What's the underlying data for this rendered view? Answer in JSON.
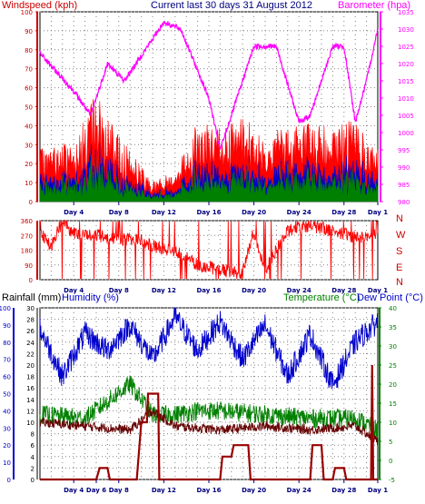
{
  "header": {
    "left_title": "Windspeed (kph)",
    "center_title": "Current last 30 days 31 August 2012",
    "right_title": "Barometer (hpa)"
  },
  "lower_header": {
    "rain_label": "Rainfall (mm)",
    "humidity_label": "Humidity (%)",
    "temperature_label": "Temperature (°C)",
    "dewpoint_label": "Dew Point (°C)"
  },
  "colors": {
    "wind_gust": "#ff0000",
    "wind_avg": "#0000cc",
    "wind_low": "#008000",
    "barometer": "#ff00ff",
    "direction": "#ff0000",
    "humidity": "#0000cc",
    "temperature": "#008000",
    "dewpoint": "#660000",
    "rainfall": "#990000",
    "axis_blue": "#0000cc",
    "grid": "#808080"
  },
  "chart_data": [
    {
      "type": "line",
      "name": "wind-and-barometer",
      "x_ticks": [
        "Day 4",
        "Day 8",
        "Day 12",
        "Day 16",
        "Day 20",
        "Day 24",
        "Day 28",
        "Day 1"
      ],
      "y_left_ticks": [
        0,
        10,
        20,
        30,
        40,
        50,
        60,
        70,
        80,
        90,
        100
      ],
      "y_left_range": [
        0,
        100
      ],
      "y_right_ticks": [
        980,
        985,
        990,
        995,
        1000,
        1005,
        1010,
        1015,
        1020,
        1025,
        1030,
        1035
      ],
      "y_right_range": [
        980,
        1035
      ],
      "barometer_keyframes": [
        [
          0,
          1023
        ],
        [
          3,
          1012
        ],
        [
          4.5,
          1005
        ],
        [
          6,
          1020
        ],
        [
          7.5,
          1015
        ],
        [
          11,
          1032
        ],
        [
          12.5,
          1030
        ],
        [
          15,
          1010
        ],
        [
          16,
          995
        ],
        [
          17.5,
          1010
        ],
        [
          19,
          1025
        ],
        [
          21,
          1025
        ],
        [
          23,
          1003
        ],
        [
          24,
          1005
        ],
        [
          26,
          1025
        ],
        [
          27,
          1025
        ],
        [
          28,
          1003
        ],
        [
          29,
          1015
        ],
        [
          30,
          1030
        ]
      ],
      "wind_envelope_keyframes": [
        [
          0,
          25
        ],
        [
          3,
          30
        ],
        [
          4,
          40
        ],
        [
          5,
          55
        ],
        [
          6,
          40
        ],
        [
          8,
          25
        ],
        [
          10,
          10
        ],
        [
          12,
          15
        ],
        [
          14,
          40
        ],
        [
          16,
          35
        ],
        [
          18,
          40
        ],
        [
          20,
          35
        ],
        [
          22,
          35
        ],
        [
          24,
          40
        ],
        [
          26,
          35
        ],
        [
          28,
          40
        ],
        [
          30,
          25
        ]
      ]
    },
    {
      "type": "scatter",
      "name": "wind-direction",
      "y_ticks": [
        0,
        90,
        180,
        270,
        360
      ],
      "y_range": [
        0,
        360
      ],
      "direction_labels": [
        "N",
        "W",
        "S",
        "E",
        "N"
      ],
      "x_ticks": [
        "Day 4",
        "Day 8",
        "Day 12",
        "Day 16",
        "Day 20",
        "Day 24",
        "Day 28",
        "Day 1"
      ]
    },
    {
      "type": "line",
      "name": "rain-humidity-temperature",
      "x_ticks": [
        "Day 4",
        "Day 6",
        "Day 8",
        "Day 12",
        "Day 16",
        "Day 20",
        "Day 24",
        "Day 28",
        "Day 1"
      ],
      "humidity_ticks": [
        0,
        10,
        20,
        30,
        40,
        50,
        60,
        70,
        80,
        90,
        100
      ],
      "humidity_range": [
        0,
        100
      ],
      "rain_ticks": [
        0,
        2,
        4,
        6,
        8,
        10,
        12,
        14,
        16,
        18,
        20,
        22,
        24,
        26,
        28,
        30
      ],
      "rain_range": [
        0,
        30
      ],
      "temperature_ticks": [
        -5,
        0,
        5,
        10,
        15,
        20,
        25,
        30,
        35,
        40
      ],
      "temperature_range": [
        -5,
        40
      ],
      "humidity_keyframes": [
        [
          0,
          88
        ],
        [
          2,
          60
        ],
        [
          4,
          85
        ],
        [
          6,
          75
        ],
        [
          8,
          90
        ],
        [
          10,
          70
        ],
        [
          12,
          95
        ],
        [
          14,
          75
        ],
        [
          16,
          92
        ],
        [
          18,
          70
        ],
        [
          20,
          90
        ],
        [
          22,
          60
        ],
        [
          24,
          85
        ],
        [
          26,
          55
        ],
        [
          28,
          80
        ],
        [
          30,
          92
        ]
      ],
      "temperature_keyframes": [
        [
          0,
          12
        ],
        [
          4,
          11
        ],
        [
          8,
          20
        ],
        [
          10,
          12
        ],
        [
          12,
          12
        ],
        [
          14,
          13
        ],
        [
          16,
          13
        ],
        [
          20,
          12
        ],
        [
          24,
          11
        ],
        [
          28,
          11
        ],
        [
          30,
          8
        ]
      ],
      "dewpoint_keyframes": [
        [
          0,
          10
        ],
        [
          4,
          9
        ],
        [
          8,
          8
        ],
        [
          10,
          13
        ],
        [
          12,
          9
        ],
        [
          16,
          8
        ],
        [
          20,
          9
        ],
        [
          24,
          8
        ],
        [
          28,
          9
        ],
        [
          30,
          5
        ]
      ],
      "rain_keyframes": [
        [
          0,
          0
        ],
        [
          5,
          0
        ],
        [
          5.3,
          2
        ],
        [
          6,
          2
        ],
        [
          6.2,
          0
        ],
        [
          8.6,
          0
        ],
        [
          9,
          10
        ],
        [
          9.5,
          10
        ],
        [
          9.6,
          15
        ],
        [
          10.5,
          15
        ],
        [
          10.6,
          0
        ],
        [
          16,
          0
        ],
        [
          16.2,
          4
        ],
        [
          17,
          4
        ],
        [
          17.2,
          6
        ],
        [
          18.5,
          6
        ],
        [
          18.7,
          0
        ],
        [
          24,
          0
        ],
        [
          24.2,
          6
        ],
        [
          25,
          6
        ],
        [
          25.2,
          0
        ],
        [
          26,
          0
        ],
        [
          26.2,
          2
        ],
        [
          27,
          2
        ],
        [
          27.2,
          0
        ],
        [
          29.4,
          0
        ],
        [
          29.5,
          20
        ],
        [
          29.6,
          0
        ],
        [
          30,
          0
        ]
      ]
    }
  ]
}
